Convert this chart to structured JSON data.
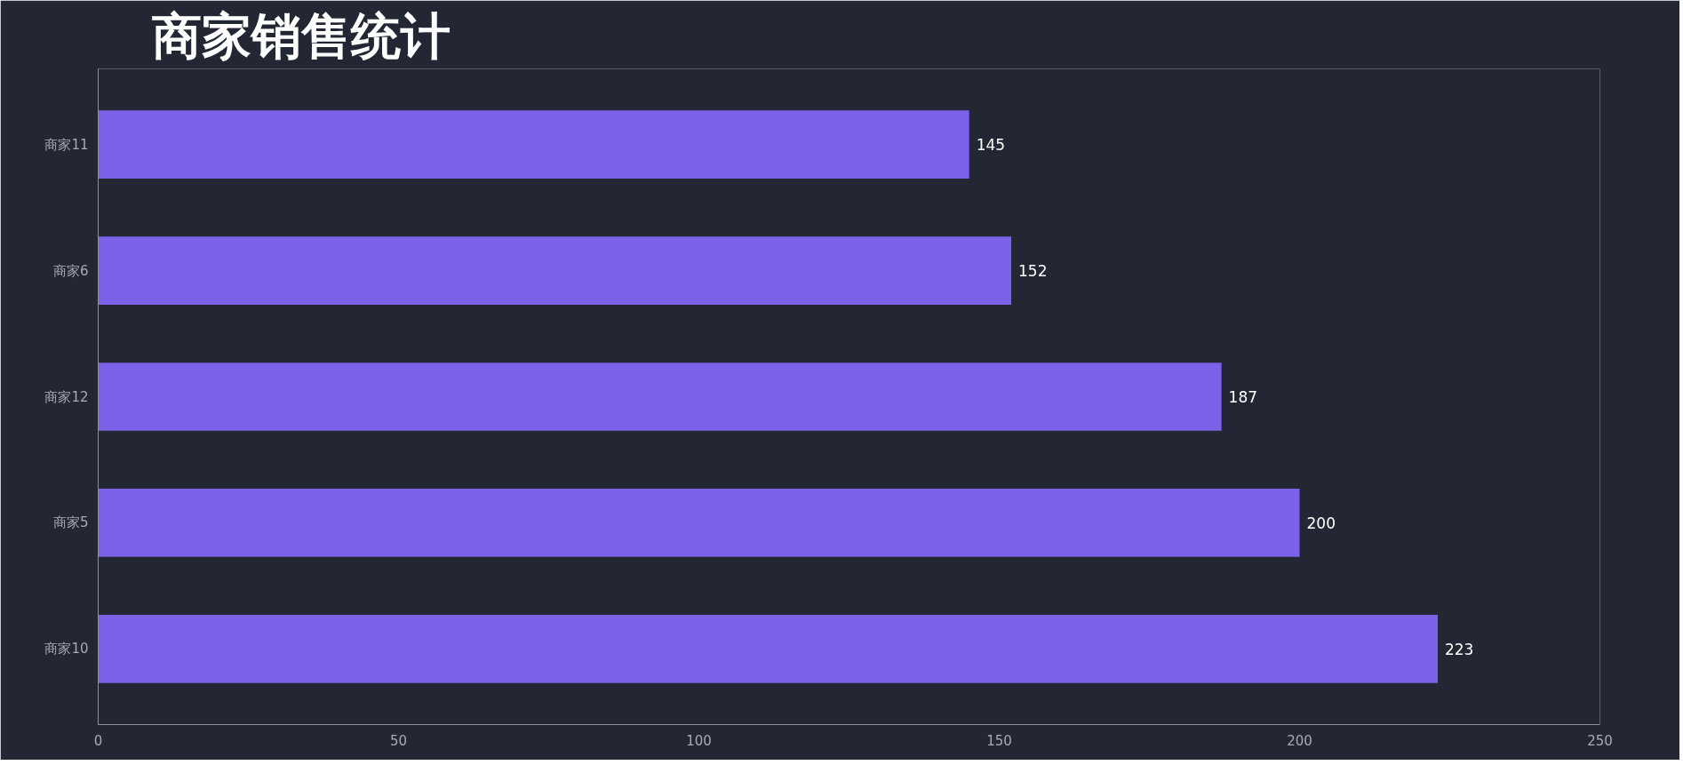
{
  "chart_data": {
    "type": "bar",
    "orientation": "horizontal",
    "title": "商家销售统计",
    "categories": [
      "商家11",
      "商家6",
      "商家12",
      "商家5",
      "商家10"
    ],
    "values": [
      145,
      152,
      187,
      200,
      223
    ],
    "color": "#7b62e9",
    "xlim": [
      0,
      250
    ],
    "xticks": [
      0,
      50,
      100,
      150,
      200,
      250
    ],
    "data_labels": true,
    "grid": false
  }
}
